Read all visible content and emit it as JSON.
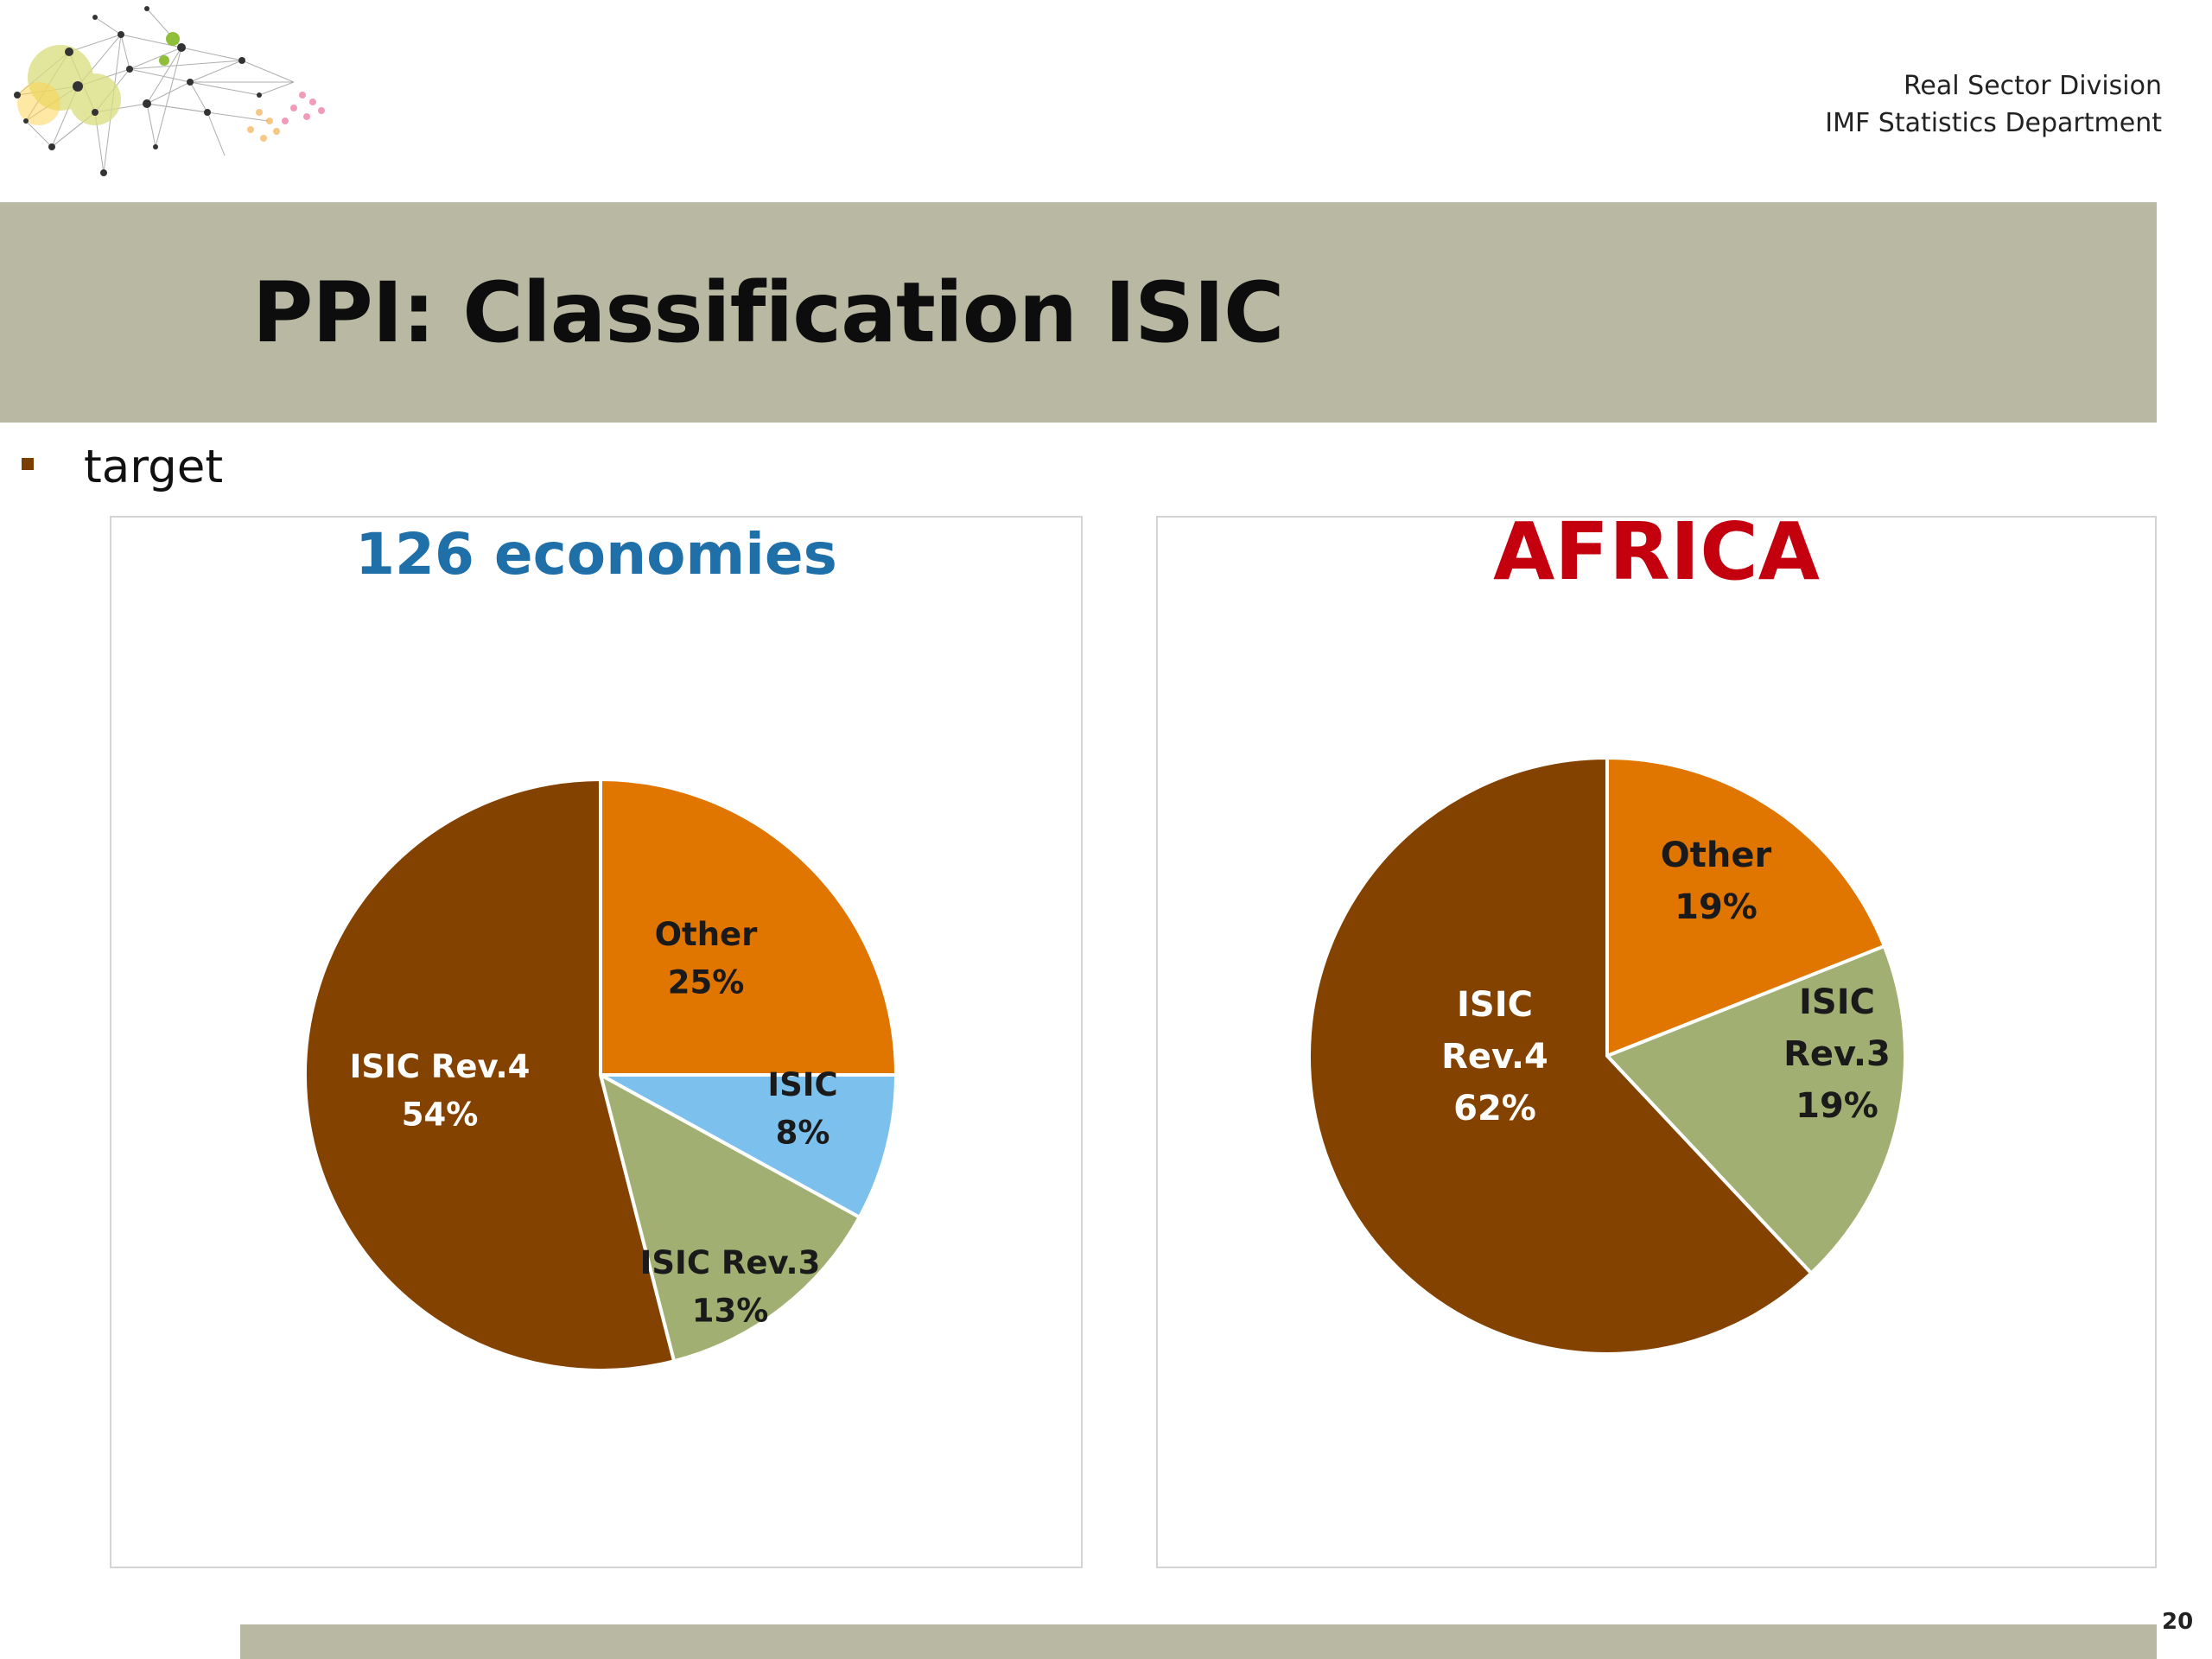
{
  "header": {
    "org_line1": "Real Sector Division",
    "org_line2": "IMF Statistics Department"
  },
  "slide": {
    "title": "PPI: Classification ISIC",
    "bullet": "target",
    "page_number": "20"
  },
  "colors": {
    "isic_rev4": "#844200",
    "other": "#e07500",
    "isic": "#7cc1ee",
    "isic_rev3": "#a2af72",
    "title_band": "#b9b8a2"
  },
  "chart_data": [
    {
      "type": "pie",
      "title": "126 economies",
      "start_angle_deg": 0,
      "direction": "clockwise",
      "slices": [
        {
          "label": "Other",
          "value": 25,
          "pct": "25%",
          "color": "#e07500"
        },
        {
          "label": "ISIC",
          "value": 8,
          "pct": "8%",
          "color": "#7cc1ee"
        },
        {
          "label": "ISIC Rev.3",
          "value": 13,
          "pct": "13%",
          "color": "#a2af72"
        },
        {
          "label": "ISIC Rev.4",
          "value": 54,
          "pct": "54%",
          "color": "#844200"
        }
      ]
    },
    {
      "type": "pie",
      "title": "AFRICA",
      "start_angle_deg": 0,
      "direction": "clockwise",
      "slices": [
        {
          "label": "Other",
          "value": 19,
          "pct": "19%",
          "color": "#e07500"
        },
        {
          "label": "ISIC Rev.3",
          "value": 19,
          "pct": "19%",
          "color": "#a2af72"
        },
        {
          "label": "ISIC Rev.4",
          "value": 62,
          "pct": "62%",
          "color": "#844200"
        }
      ]
    }
  ]
}
